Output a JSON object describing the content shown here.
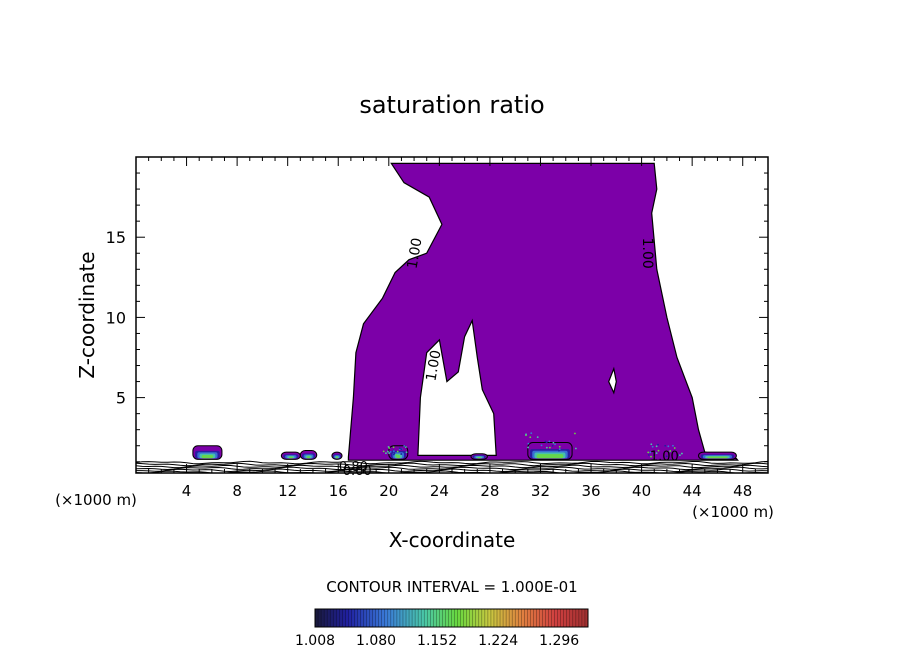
{
  "chart_data": {
    "type": "contour",
    "title": "saturation ratio",
    "xlabel": "X-coordinate",
    "ylabel": "Z-coordinate",
    "x_unit_label": "(×1000 m)",
    "x_unit_label_right": "(×1000 m)",
    "xlim": [
      0,
      50
    ],
    "ylim": [
      0.3,
      20
    ],
    "x_ticks": [
      4,
      8,
      12,
      16,
      20,
      24,
      28,
      32,
      36,
      40,
      44,
      48
    ],
    "x_tick_labels": [
      "4",
      "8",
      "12",
      "16",
      "20",
      "24",
      "28",
      "32",
      "36",
      "40",
      "44",
      "48"
    ],
    "y_ticks": [
      5,
      10,
      15
    ],
    "y_tick_labels": [
      "5",
      "10",
      "15"
    ],
    "contour_interval_text": "CONTOUR INTERVAL = 1.000E-01",
    "contour_labels": [
      {
        "text": "1.00",
        "x": 22.0,
        "z": 14.0
      },
      {
        "text": "1.00",
        "x": 40.5,
        "z": 14.0
      },
      {
        "text": "1.00",
        "x": 23.5,
        "z": 7.0
      },
      {
        "text": "1.00",
        "x": 41.8,
        "z": 1.4
      },
      {
        "text": "0.80",
        "x": 17.2,
        "z": 0.75
      },
      {
        "text": "0.60",
        "x": 17.5,
        "z": 0.5
      }
    ],
    "colorbar": {
      "min": 1.008,
      "max": 1.33,
      "tick_labels": [
        "1.008",
        "1.080",
        "1.152",
        "1.224",
        "1.296"
      ],
      "colors": [
        "#1a1a3a",
        "#2020a0",
        "#3a7ad8",
        "#4ac8a8",
        "#68d840",
        "#c8c840",
        "#e08040",
        "#d04040",
        "#a03030"
      ]
    },
    "saturated_fill_color": "#7c00a8",
    "cloud_region_outline": [
      [
        16.8,
        1.3
      ],
      [
        17.2,
        5.0
      ],
      [
        17.4,
        7.8
      ],
      [
        18.0,
        9.6
      ],
      [
        19.5,
        11.2
      ],
      [
        20.5,
        12.8
      ],
      [
        21.6,
        13.6
      ],
      [
        23.0,
        14.0
      ],
      [
        24.2,
        15.8
      ],
      [
        23.2,
        17.5
      ],
      [
        21.2,
        18.4
      ],
      [
        20.2,
        19.6
      ],
      [
        41.0,
        19.6
      ],
      [
        41.2,
        18.0
      ],
      [
        40.8,
        16.5
      ],
      [
        41.2,
        13.0
      ],
      [
        42.0,
        10.0
      ],
      [
        42.8,
        7.5
      ],
      [
        44.0,
        5.0
      ],
      [
        44.5,
        3.0
      ],
      [
        45.0,
        1.6
      ],
      [
        47.5,
        1.2
      ],
      [
        47.6,
        1.1
      ],
      [
        16.8,
        1.1
      ]
    ],
    "hole_regions": [
      [
        [
          22.3,
          1.4
        ],
        [
          22.5,
          5.0
        ],
        [
          23.0,
          7.8
        ],
        [
          24.0,
          8.6
        ],
        [
          24.6,
          6.0
        ],
        [
          25.5,
          6.6
        ],
        [
          26.0,
          8.8
        ],
        [
          26.6,
          9.8
        ],
        [
          27.0,
          7.5
        ],
        [
          27.4,
          5.5
        ],
        [
          28.3,
          4.0
        ],
        [
          28.5,
          1.4
        ]
      ],
      [
        [
          37.4,
          6.0
        ],
        [
          37.8,
          5.3
        ],
        [
          38.0,
          6.0
        ],
        [
          37.8,
          6.8
        ]
      ]
    ],
    "small_cells": [
      {
        "x0": 4.5,
        "x1": 6.8,
        "ztop": 2.0
      },
      {
        "x0": 11.5,
        "x1": 13.0,
        "ztop": 1.6
      },
      {
        "x0": 13.0,
        "x1": 14.3,
        "ztop": 1.7
      },
      {
        "x0": 15.5,
        "x1": 16.3,
        "ztop": 1.6
      },
      {
        "x0": 20.0,
        "x1": 21.5,
        "ztop": 2.0
      },
      {
        "x0": 26.5,
        "x1": 27.8,
        "ztop": 1.5
      },
      {
        "x0": 31.0,
        "x1": 34.5,
        "ztop": 2.2
      },
      {
        "x0": 44.5,
        "x1": 47.5,
        "ztop": 1.6
      }
    ]
  }
}
